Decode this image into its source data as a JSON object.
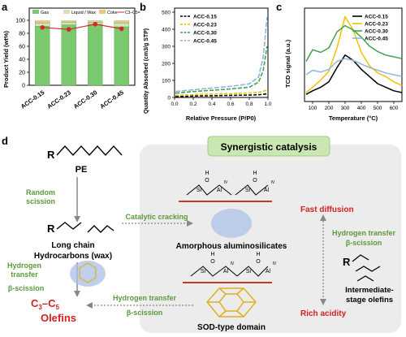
{
  "panel_labels": {
    "a": "a",
    "b": "b",
    "c": "c",
    "d": "d"
  },
  "colors": {
    "gas": "#7bc96f",
    "liquid": "#cfe6b8",
    "coke": "#f3c27b",
    "c3c5": "#d62728",
    "s015": "#000000",
    "s023": "#f2c200",
    "s030": "#3fa34d",
    "s045": "#8fb4e0",
    "green_text": "#5b9a3a",
    "red_text": "#d32020",
    "panel_bg": "#ececec",
    "synergy_bg": "#c9e6b3"
  },
  "chart_data": [
    {
      "type": "bar",
      "panel": "a",
      "categories": [
        "ACC-0.15",
        "ACC-0.23",
        "ACC-0.30",
        "ACC-0.45"
      ],
      "ylabel": "Product Yield (wt%)",
      "ylim": [
        0,
        100
      ],
      "yticks": [
        "0",
        "20",
        "40",
        "60",
        "80",
        "100"
      ],
      "legend": [
        "Gas",
        "Liquid / Wax",
        "Coke",
        "C3–C5="
      ],
      "series": [
        {
          "name": "Gas",
          "values": [
            91,
            93,
            94,
            90
          ]
        },
        {
          "name": "Liquid / Wax",
          "values": [
            5,
            4,
            3,
            6
          ]
        },
        {
          "name": "Coke",
          "values": [
            3,
            2,
            2,
            3
          ]
        },
        {
          "name": "C3–C5=",
          "values": [
            89,
            86,
            94,
            87
          ]
        }
      ]
    },
    {
      "type": "line",
      "panel": "b",
      "xlabel": "Relative Pressure (P/P0)",
      "ylabel": "Quantity Absorbed (cm3/g STP)",
      "xlim": [
        0,
        1
      ],
      "ylim": [
        0,
        500
      ],
      "xticks": [
        "0.0",
        "0.2",
        "0.4",
        "0.6",
        "0.8",
        "1.0"
      ],
      "yticks": [
        "0",
        "100",
        "200",
        "300",
        "400",
        "500"
      ],
      "series": [
        {
          "name": "ACC-0.15",
          "x": [
            0.01,
            0.2,
            0.4,
            0.6,
            0.8,
            0.9,
            0.95,
            0.99
          ],
          "y": [
            5,
            8,
            10,
            12,
            14,
            16,
            18,
            22
          ]
        },
        {
          "name": "ACC-0.23",
          "x": [
            0.01,
            0.2,
            0.4,
            0.6,
            0.8,
            0.9,
            0.95,
            0.99
          ],
          "y": [
            12,
            16,
            20,
            22,
            26,
            30,
            36,
            45
          ]
        },
        {
          "name": "ACC-0.30",
          "x": [
            0.01,
            0.2,
            0.4,
            0.6,
            0.8,
            0.9,
            0.95,
            0.99
          ],
          "y": [
            25,
            35,
            42,
            50,
            60,
            90,
            160,
            300
          ]
        },
        {
          "name": "ACC-0.45",
          "x": [
            0.01,
            0.2,
            0.4,
            0.6,
            0.8,
            0.9,
            0.95,
            0.99
          ],
          "y": [
            35,
            45,
            55,
            65,
            80,
            120,
            240,
            470
          ]
        }
      ]
    },
    {
      "type": "line",
      "panel": "c",
      "xlabel": "Temperature (°C)",
      "ylabel": "TCD signal (a.u.)",
      "xlim": [
        50,
        650
      ],
      "xticks": [
        "100",
        "200",
        "300",
        "400",
        "500",
        "600"
      ],
      "series": [
        {
          "name": "ACC-0.15",
          "x": [
            60,
            100,
            150,
            200,
            250,
            300,
            350,
            400,
            450,
            500,
            550,
            600,
            650
          ],
          "y": [
            0.08,
            0.12,
            0.16,
            0.22,
            0.38,
            0.52,
            0.46,
            0.36,
            0.28,
            0.2,
            0.16,
            0.12,
            0.1
          ]
        },
        {
          "name": "ACC-0.23",
          "x": [
            60,
            100,
            150,
            200,
            250,
            300,
            350,
            400,
            450,
            500,
            550,
            600,
            650
          ],
          "y": [
            0.1,
            0.16,
            0.24,
            0.34,
            0.6,
            0.95,
            0.8,
            0.55,
            0.4,
            0.32,
            0.28,
            0.22,
            0.18
          ]
        },
        {
          "name": "ACC-0.30",
          "x": [
            60,
            100,
            150,
            200,
            250,
            300,
            350,
            400,
            450,
            500,
            550,
            600,
            650
          ],
          "y": [
            0.45,
            0.58,
            0.55,
            0.6,
            0.78,
            0.85,
            0.8,
            0.72,
            0.62,
            0.56,
            0.52,
            0.5,
            0.48
          ]
        },
        {
          "name": "ACC-0.45",
          "x": [
            60,
            100,
            150,
            200,
            250,
            300,
            350,
            400,
            450,
            500,
            550,
            600,
            650
          ],
          "y": [
            0.3,
            0.35,
            0.33,
            0.36,
            0.45,
            0.48,
            0.46,
            0.42,
            0.38,
            0.35,
            0.32,
            0.3,
            0.28
          ]
        }
      ]
    }
  ],
  "panel_d": {
    "pe_r": "R",
    "pe": "PE",
    "random": "Random",
    "scission": "scission",
    "wax_r": "R",
    "long_chain": "Long chain",
    "hydrocarbons": "Hydrocarbons (wax)",
    "hydrogen": "Hydrogen",
    "transfer": "transfer",
    "beta_scission": "β-scission",
    "olefins_c": "C",
    "olefins_3": "3",
    "olefins_dash": "–C",
    "olefins_5": "5",
    "olefins": "Olefins",
    "catalytic_cracking": "Catalytic cracking",
    "synergistic": "Synergistic catalysis",
    "amorphous": "Amorphous aluminosilicates",
    "fast_diffusion": "Fast diffusion",
    "hydrogen_transfer": "Hydrogen transfer",
    "beta_scission_right": "β-scission",
    "intermediate_r": "R",
    "intermediate": "Intermediate-",
    "stage_olefins": "stage olefins",
    "rich_acidity": "Rich acidity",
    "hydrogen_transfer_bottom": "Hydrogen transfer",
    "beta_scission_bottom": "β-scission",
    "sod": "SOD-type domain",
    "h": "H",
    "o": "O",
    "si": "Si",
    "al": "Al",
    "iv": "IV"
  }
}
